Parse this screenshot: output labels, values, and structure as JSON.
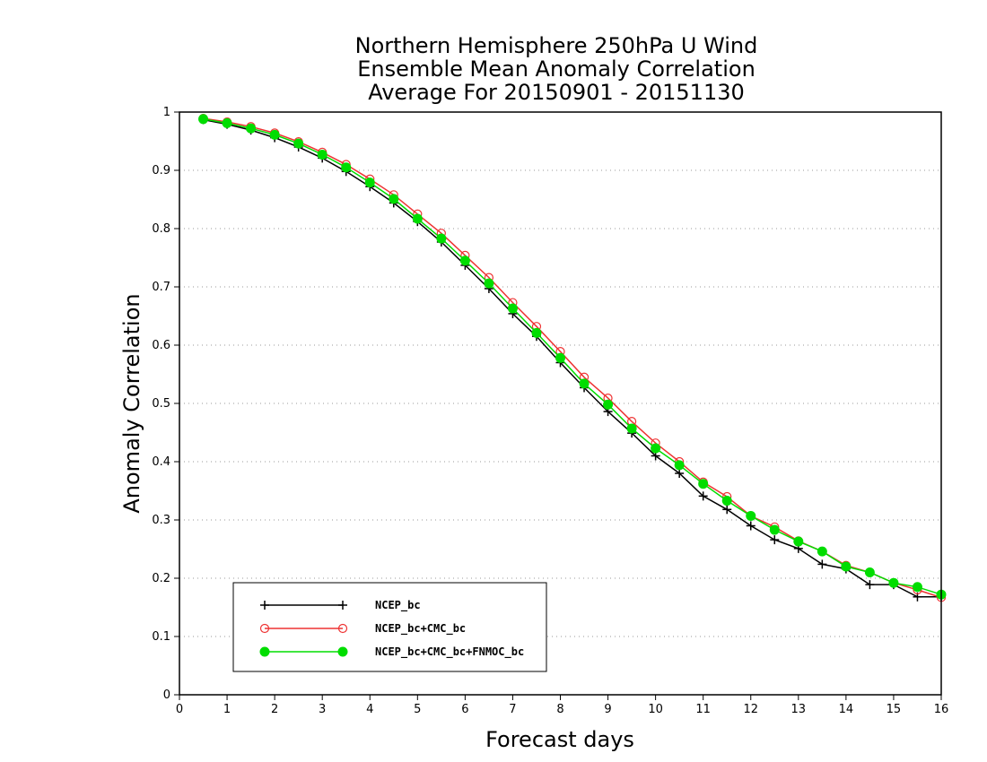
{
  "chart_data": {
    "type": "line",
    "title_lines": [
      "Northern Hemisphere 250hPa U Wind",
      "Ensemble Mean Anomaly Correlation",
      "Average For 20150901 - 20151130"
    ],
    "xlabel": "Forecast days",
    "ylabel": "Anomaly Correlation",
    "xlim": [
      0,
      16
    ],
    "ylim": [
      0,
      1
    ],
    "xticks": [
      0,
      1,
      2,
      3,
      4,
      5,
      6,
      7,
      8,
      9,
      10,
      11,
      12,
      13,
      14,
      15,
      16
    ],
    "yticks": [
      0,
      0.1,
      0.2,
      0.3,
      0.4,
      0.5,
      0.6,
      0.7,
      0.8,
      0.9,
      1
    ],
    "ytick_labels": [
      "0",
      "0.1",
      "0.2",
      "0.3",
      "0.4",
      "0.5",
      "0.6",
      "0.7",
      "0.8",
      "0.9",
      "1"
    ],
    "grid": "horizontal dotted",
    "legend_position": "bottom-left",
    "x": [
      0.5,
      1,
      1.5,
      2,
      2.5,
      3,
      3.5,
      4,
      4.5,
      5,
      5.5,
      6,
      6.5,
      7,
      7.5,
      8,
      8.5,
      9,
      9.5,
      10,
      10.5,
      11,
      11.5,
      12,
      12.5,
      13,
      13.5,
      14,
      14.5,
      15,
      15.5,
      16
    ],
    "series": [
      {
        "name": "NCEP_bc",
        "color": "#000000",
        "marker": "plus",
        "values": [
          0.987,
          0.979,
          0.969,
          0.956,
          0.94,
          0.921,
          0.898,
          0.872,
          0.844,
          0.812,
          0.777,
          0.737,
          0.697,
          0.654,
          0.615,
          0.57,
          0.527,
          0.486,
          0.449,
          0.41,
          0.38,
          0.341,
          0.318,
          0.29,
          0.266,
          0.251,
          0.224,
          0.216,
          0.189,
          0.189,
          0.168,
          0.168
        ]
      },
      {
        "name": "NCEP_bc+CMC_bc",
        "color": "#ee3333",
        "marker": "open-circle",
        "values": [
          0.989,
          0.983,
          0.975,
          0.964,
          0.949,
          0.931,
          0.91,
          0.885,
          0.858,
          0.825,
          0.792,
          0.754,
          0.716,
          0.673,
          0.632,
          0.589,
          0.545,
          0.509,
          0.469,
          0.432,
          0.4,
          0.365,
          0.34,
          0.307,
          0.288,
          0.264,
          0.246,
          0.222,
          0.21,
          0.192,
          0.18,
          0.167
        ]
      },
      {
        "name": "NCEP_bc+CMC_bc+FNMOC_bc",
        "color": "#00dd00",
        "marker": "filled-circle",
        "values": [
          0.988,
          0.981,
          0.972,
          0.961,
          0.946,
          0.927,
          0.905,
          0.879,
          0.851,
          0.817,
          0.783,
          0.745,
          0.706,
          0.663,
          0.621,
          0.578,
          0.534,
          0.498,
          0.457,
          0.423,
          0.394,
          0.362,
          0.333,
          0.307,
          0.283,
          0.263,
          0.246,
          0.22,
          0.21,
          0.192,
          0.185,
          0.172
        ]
      }
    ]
  }
}
